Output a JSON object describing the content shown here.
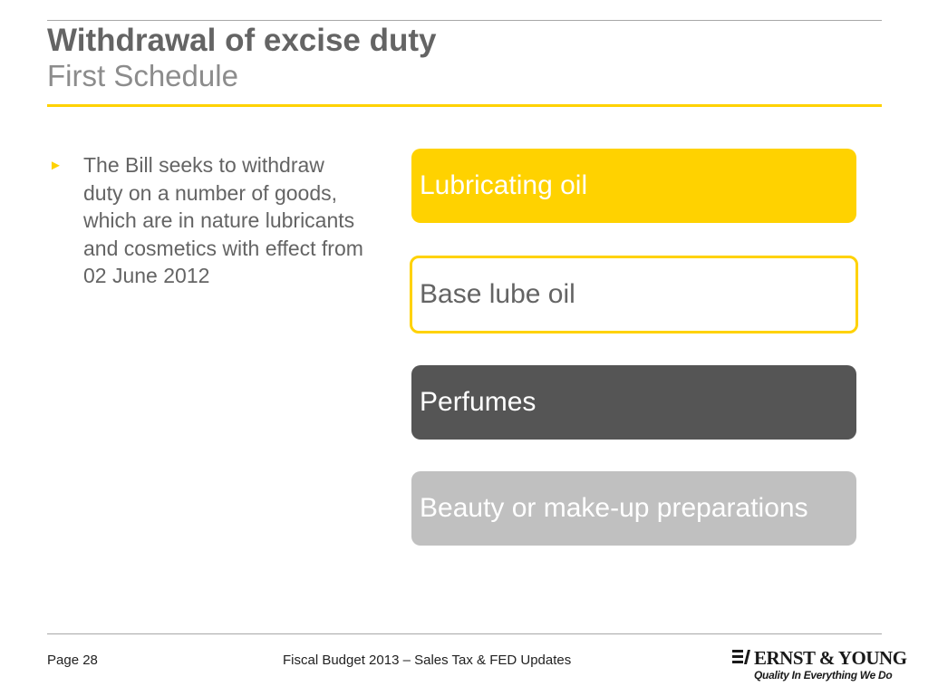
{
  "slide": {
    "title": "Withdrawal of excise duty",
    "subtitle": "First Schedule"
  },
  "bullets": [
    "The Bill seeks to withdraw duty on a number of goods, which are in nature lubricants and cosmetics with effect from 02 June 2012"
  ],
  "items": [
    {
      "label": "Lubricating oil",
      "fill": "#ffd200",
      "text_color": "#ffffff"
    },
    {
      "label": "Base lube oil",
      "fill": "#ffffff",
      "outline": "#ffd200",
      "text_color": "#646464"
    },
    {
      "label": "Perfumes",
      "fill": "#555555",
      "text_color": "#ffffff"
    },
    {
      "label": "Beauty or make-up preparations",
      "fill": "#c0c0c0",
      "text_color": "#ffffff"
    }
  ],
  "footer": {
    "page": "Page 28",
    "center": "Fiscal Budget 2013 – Sales Tax & FED Updates"
  },
  "logo": {
    "name": "ERNST & YOUNG",
    "tagline": "Quality In Everything We Do"
  },
  "colors": {
    "accent": "#ffd200",
    "title_gray": "#646464",
    "dark_box": "#555555",
    "light_box": "#c0c0c0"
  }
}
